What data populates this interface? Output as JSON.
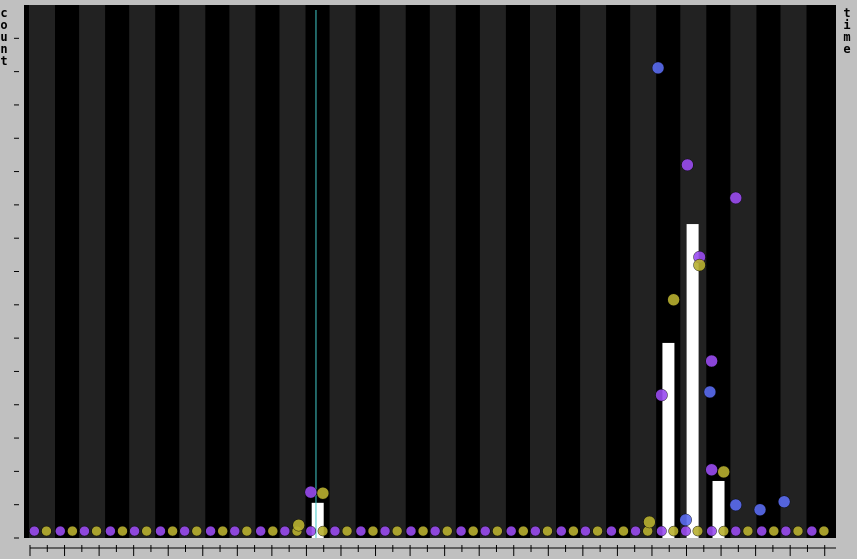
{
  "chart_data": {
    "type": "bar",
    "y_label": "count",
    "y2_label": "time",
    "x": [
      17.0,
      37.3,
      38.7,
      40.2
    ],
    "values": [
      6.6,
      36.6,
      58.9,
      10.7
    ],
    "color": "#ffffff",
    "xlim": [
      0,
      47
    ],
    "xticks": [
      0,
      1,
      2,
      3,
      4,
      5,
      6,
      7,
      8,
      9,
      10,
      11,
      12,
      13,
      14,
      15,
      16,
      17,
      18,
      19,
      20,
      21,
      22,
      23,
      24,
      25,
      26,
      27,
      28,
      29,
      30,
      31,
      32,
      33,
      34,
      35,
      36,
      37,
      38,
      39,
      40,
      41,
      42,
      43,
      44,
      45,
      46
    ],
    "ylim": [
      0,
      100
    ],
    "yticks": [
      0,
      6.25,
      12.5,
      18.75,
      25,
      31.25,
      37.5,
      43.75,
      50,
      56.25,
      62.5,
      68.75,
      75,
      81.25,
      87.5,
      93.75
    ],
    "cursor_x": 16.9,
    "cursor_color": "#40c8c8",
    "points": [
      {
        "color": "#9a4cf0",
        "x": [
          0.6,
          2.1,
          3.5,
          5.0,
          6.4,
          7.9,
          9.3,
          10.8,
          12.2,
          13.7,
          15.1,
          16.6,
          18.0,
          19.5,
          20.9,
          22.4,
          23.8,
          25.3,
          26.7,
          28.2,
          29.6,
          31.1,
          32.5,
          34.0,
          35.4,
          36.9,
          38.3,
          39.8,
          41.2,
          42.7,
          44.1,
          45.6,
          38.4,
          36.9,
          39.8,
          41.2,
          16.6,
          39.8,
          39.1
        ],
        "values": [
          1.3,
          1.3,
          1.3,
          1.3,
          1.3,
          1.3,
          1.3,
          1.3,
          1.3,
          1.3,
          1.3,
          1.3,
          1.3,
          1.3,
          1.3,
          1.3,
          1.3,
          1.3,
          1.3,
          1.3,
          1.3,
          1.3,
          1.3,
          1.3,
          1.3,
          1.3,
          1.3,
          1.3,
          1.3,
          1.3,
          1.3,
          1.3,
          70,
          26.8,
          33.2,
          63.8,
          8.6,
          12.8,
          52.7
        ]
      },
      {
        "color": "#b8b030",
        "x": [
          1.3,
          2.8,
          4.2,
          5.7,
          7.1,
          8.6,
          10.0,
          11.5,
          12.9,
          14.4,
          15.8,
          17.3,
          18.7,
          20.2,
          21.6,
          23.1,
          24.5,
          26.0,
          27.4,
          28.9,
          30.3,
          31.8,
          33.2,
          34.7,
          36.1,
          37.6,
          39.0,
          40.5,
          41.9,
          43.4,
          44.8,
          46.3,
          17.3,
          37.6,
          39.1,
          40.5,
          15.9,
          36.2
        ],
        "values": [
          1.3,
          1.3,
          1.3,
          1.3,
          1.3,
          1.3,
          1.3,
          1.3,
          1.3,
          1.3,
          1.3,
          1.3,
          1.3,
          1.3,
          1.3,
          1.3,
          1.3,
          1.3,
          1.3,
          1.3,
          1.3,
          1.3,
          1.3,
          1.3,
          1.3,
          1.3,
          1.3,
          1.3,
          1.3,
          1.3,
          1.3,
          1.3,
          8.4,
          44.7,
          51.2,
          12.4,
          2.4,
          3.0
        ]
      },
      {
        "color": "#5a6cf0",
        "x": [
          36.7,
          41.2,
          42.6,
          44.0,
          39.7,
          38.3
        ],
        "values": [
          88.2,
          6.2,
          5.3,
          6.8,
          27.4,
          3.4
        ]
      }
    ]
  }
}
